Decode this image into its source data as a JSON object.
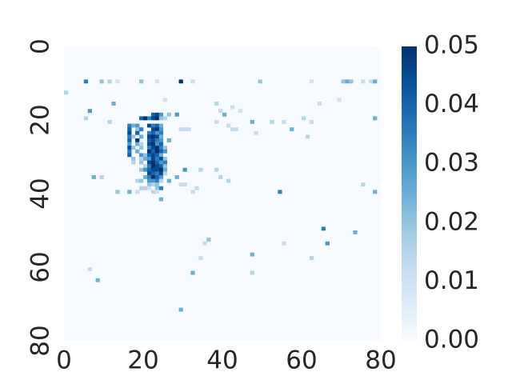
{
  "chart_data": {
    "type": "heatmap",
    "title": "",
    "xlabel": "",
    "ylabel": "",
    "grid_size": [
      80,
      80
    ],
    "xlim": [
      0,
      80
    ],
    "ylim": [
      80,
      0
    ],
    "x_ticks": [
      "0",
      "20",
      "40",
      "60",
      "80"
    ],
    "y_ticks": [
      "0",
      "20",
      "40",
      "60",
      "80"
    ],
    "x_tick_values": [
      0,
      20,
      40,
      60,
      80
    ],
    "y_tick_values": [
      0,
      20,
      40,
      60,
      80
    ],
    "colorbar": {
      "min": 0.0,
      "max": 0.05,
      "ticks": [
        "0.00",
        "0.01",
        "0.02",
        "0.03",
        "0.04",
        "0.05"
      ],
      "tick_values": [
        0.0,
        0.01,
        0.02,
        0.03,
        0.04,
        0.05
      ],
      "colormap": "Blues"
    },
    "colors": {
      "low": "#f7fbff",
      "high": "#08306b",
      "text": "#262626"
    },
    "cells": [
      [
        5,
        9,
        0.035
      ],
      [
        9,
        9,
        0.02
      ],
      [
        11,
        9,
        0.015
      ],
      [
        13,
        9,
        0.01
      ],
      [
        19,
        9,
        0.02
      ],
      [
        23,
        9,
        0.01
      ],
      [
        29,
        9,
        0.05
      ],
      [
        32,
        9,
        0.012
      ],
      [
        49,
        9,
        0.02
      ],
      [
        62,
        9,
        0.01
      ],
      [
        70,
        9,
        0.02
      ],
      [
        71,
        9,
        0.025
      ],
      [
        72,
        9,
        0.02
      ],
      [
        75,
        9,
        0.012
      ],
      [
        77,
        9,
        0.012
      ],
      [
        78,
        9,
        0.025
      ],
      [
        0,
        12,
        0.015
      ],
      [
        12,
        15,
        0.025
      ],
      [
        38,
        15,
        0.015
      ],
      [
        25,
        14,
        0.01
      ],
      [
        64,
        15,
        0.012
      ],
      [
        69,
        14,
        0.01
      ],
      [
        6,
        17,
        0.03
      ],
      [
        42,
        16,
        0.012
      ],
      [
        39,
        17,
        0.012
      ],
      [
        44,
        17,
        0.01
      ],
      [
        5,
        19,
        0.015
      ],
      [
        22,
        18,
        0.04
      ],
      [
        23,
        18,
        0.045
      ],
      [
        24,
        18,
        0.03
      ],
      [
        26,
        18,
        0.02
      ],
      [
        28,
        18,
        0.03
      ],
      [
        40,
        18,
        0.025
      ],
      [
        60,
        19,
        0.015
      ],
      [
        78,
        19,
        0.025
      ],
      [
        11,
        20,
        0.015
      ],
      [
        19,
        19,
        0.04
      ],
      [
        20,
        19,
        0.05
      ],
      [
        21,
        19,
        0.035
      ],
      [
        22,
        19,
        0.045
      ],
      [
        23,
        19,
        0.05
      ],
      [
        24,
        19,
        0.02
      ],
      [
        25,
        19,
        0.015
      ],
      [
        38,
        20,
        0.012
      ],
      [
        47,
        20,
        0.025
      ],
      [
        52,
        20,
        0.015
      ],
      [
        55,
        20,
        0.012
      ],
      [
        62,
        20,
        0.012
      ],
      [
        16,
        21,
        0.035
      ],
      [
        17,
        21,
        0.025
      ],
      [
        18,
        21,
        0.03
      ],
      [
        21,
        21,
        0.045
      ],
      [
        22,
        21,
        0.035
      ],
      [
        23,
        21,
        0.04
      ],
      [
        24,
        21,
        0.025
      ],
      [
        41,
        21,
        0.012
      ],
      [
        16,
        22,
        0.04
      ],
      [
        18,
        22,
        0.02
      ],
      [
        19,
        22,
        0.035
      ],
      [
        22,
        22,
        0.045
      ],
      [
        23,
        22,
        0.05
      ],
      [
        24,
        22,
        0.03
      ],
      [
        29,
        22,
        0.012
      ],
      [
        30,
        22,
        0.012
      ],
      [
        31,
        22,
        0.012
      ],
      [
        42,
        22,
        0.012
      ],
      [
        43,
        22,
        0.012
      ],
      [
        57,
        22,
        0.025
      ],
      [
        48,
        23,
        0.012
      ],
      [
        16,
        23,
        0.045
      ],
      [
        18,
        23,
        0.04
      ],
      [
        21,
        23,
        0.035
      ],
      [
        22,
        23,
        0.04
      ],
      [
        23,
        23,
        0.03
      ],
      [
        24,
        23,
        0.035
      ],
      [
        16,
        24,
        0.035
      ],
      [
        17,
        24,
        0.02
      ],
      [
        19,
        24,
        0.025
      ],
      [
        21,
        24,
        0.045
      ],
      [
        22,
        24,
        0.05
      ],
      [
        23,
        24,
        0.045
      ],
      [
        24,
        24,
        0.025
      ],
      [
        61,
        24,
        0.015
      ],
      [
        16,
        25,
        0.04
      ],
      [
        18,
        25,
        0.05
      ],
      [
        21,
        25,
        0.04
      ],
      [
        22,
        25,
        0.045
      ],
      [
        23,
        25,
        0.035
      ],
      [
        24,
        25,
        0.03
      ],
      [
        26,
        25,
        0.025
      ],
      [
        16,
        26,
        0.03
      ],
      [
        18,
        26,
        0.025
      ],
      [
        19,
        26,
        0.015
      ],
      [
        21,
        26,
        0.045
      ],
      [
        22,
        26,
        0.05
      ],
      [
        23,
        26,
        0.03
      ],
      [
        24,
        26,
        0.04
      ],
      [
        16,
        27,
        0.045
      ],
      [
        17,
        27,
        0.02
      ],
      [
        19,
        27,
        0.02
      ],
      [
        21,
        27,
        0.035
      ],
      [
        22,
        27,
        0.045
      ],
      [
        23,
        27,
        0.05
      ],
      [
        24,
        27,
        0.035
      ],
      [
        25,
        27,
        0.02
      ],
      [
        16,
        28,
        0.035
      ],
      [
        18,
        28,
        0.025
      ],
      [
        21,
        28,
        0.05
      ],
      [
        22,
        28,
        0.04
      ],
      [
        23,
        28,
        0.05
      ],
      [
        24,
        28,
        0.04
      ],
      [
        25,
        28,
        0.03
      ],
      [
        16,
        29,
        0.04
      ],
      [
        19,
        29,
        0.03
      ],
      [
        20,
        29,
        0.02
      ],
      [
        21,
        29,
        0.04
      ],
      [
        22,
        29,
        0.045
      ],
      [
        23,
        29,
        0.04
      ],
      [
        24,
        29,
        0.025
      ],
      [
        17,
        30,
        0.02
      ],
      [
        19,
        30,
        0.015
      ],
      [
        20,
        30,
        0.025
      ],
      [
        21,
        30,
        0.03
      ],
      [
        22,
        30,
        0.045
      ],
      [
        23,
        30,
        0.035
      ],
      [
        24,
        30,
        0.045
      ],
      [
        25,
        30,
        0.02
      ],
      [
        17,
        31,
        0.015
      ],
      [
        19,
        31,
        0.02
      ],
      [
        21,
        31,
        0.045
      ],
      [
        22,
        31,
        0.05
      ],
      [
        23,
        31,
        0.04
      ],
      [
        24,
        31,
        0.03
      ],
      [
        25,
        31,
        0.035
      ],
      [
        20,
        32,
        0.015
      ],
      [
        21,
        32,
        0.035
      ],
      [
        22,
        32,
        0.05
      ],
      [
        23,
        32,
        0.045
      ],
      [
        24,
        32,
        0.04
      ],
      [
        25,
        32,
        0.02
      ],
      [
        19,
        33,
        0.02
      ],
      [
        20,
        33,
        0.03
      ],
      [
        21,
        33,
        0.04
      ],
      [
        22,
        33,
        0.045
      ],
      [
        23,
        33,
        0.045
      ],
      [
        24,
        33,
        0.05
      ],
      [
        25,
        33,
        0.025
      ],
      [
        30,
        33,
        0.03
      ],
      [
        34,
        33,
        0.015
      ],
      [
        38,
        33,
        0.015
      ],
      [
        21,
        34,
        0.045
      ],
      [
        22,
        34,
        0.04
      ],
      [
        23,
        34,
        0.035
      ],
      [
        24,
        34,
        0.045
      ],
      [
        25,
        34,
        0.015
      ],
      [
        7,
        35,
        0.025
      ],
      [
        9,
        35,
        0.015
      ],
      [
        20,
        35,
        0.025
      ],
      [
        21,
        35,
        0.035
      ],
      [
        22,
        35,
        0.05
      ],
      [
        23,
        35,
        0.04
      ],
      [
        24,
        35,
        0.03
      ],
      [
        28,
        35,
        0.025
      ],
      [
        39,
        35,
        0.015
      ],
      [
        18,
        36,
        0.015
      ],
      [
        19,
        36,
        0.02
      ],
      [
        21,
        36,
        0.03
      ],
      [
        22,
        36,
        0.03
      ],
      [
        23,
        36,
        0.035
      ],
      [
        24,
        36,
        0.015
      ],
      [
        26,
        36,
        0.025
      ],
      [
        41,
        36,
        0.015
      ],
      [
        21,
        37,
        0.02
      ],
      [
        22,
        37,
        0.015
      ],
      [
        23,
        37,
        0.02
      ],
      [
        29,
        37,
        0.012
      ],
      [
        30,
        37,
        0.012
      ],
      [
        75,
        37,
        0.015
      ],
      [
        19,
        38,
        0.015
      ],
      [
        20,
        38,
        0.015
      ],
      [
        21,
        38,
        0.01
      ],
      [
        23,
        38,
        0.02
      ],
      [
        24,
        38,
        0.035
      ],
      [
        33,
        38,
        0.012
      ],
      [
        13,
        39,
        0.02
      ],
      [
        16,
        39,
        0.025
      ],
      [
        18,
        39,
        0.012
      ],
      [
        22,
        39,
        0.015
      ],
      [
        23,
        39,
        0.01
      ],
      [
        32,
        39,
        0.012
      ],
      [
        54,
        39,
        0.035
      ],
      [
        78,
        39,
        0.025
      ],
      [
        24,
        41,
        0.025
      ],
      [
        65,
        49,
        0.035
      ],
      [
        73,
        50,
        0.025
      ],
      [
        36,
        52,
        0.02
      ],
      [
        55,
        53,
        0.012
      ],
      [
        35,
        53,
        0.012
      ],
      [
        66,
        53,
        0.03
      ],
      [
        47,
        56,
        0.025
      ],
      [
        34,
        57,
        0.012
      ],
      [
        62,
        57,
        0.015
      ],
      [
        6,
        60,
        0.012
      ],
      [
        32,
        61,
        0.025
      ],
      [
        47,
        61,
        0.015
      ],
      [
        8,
        63,
        0.025
      ],
      [
        29,
        71,
        0.025
      ]
    ]
  }
}
